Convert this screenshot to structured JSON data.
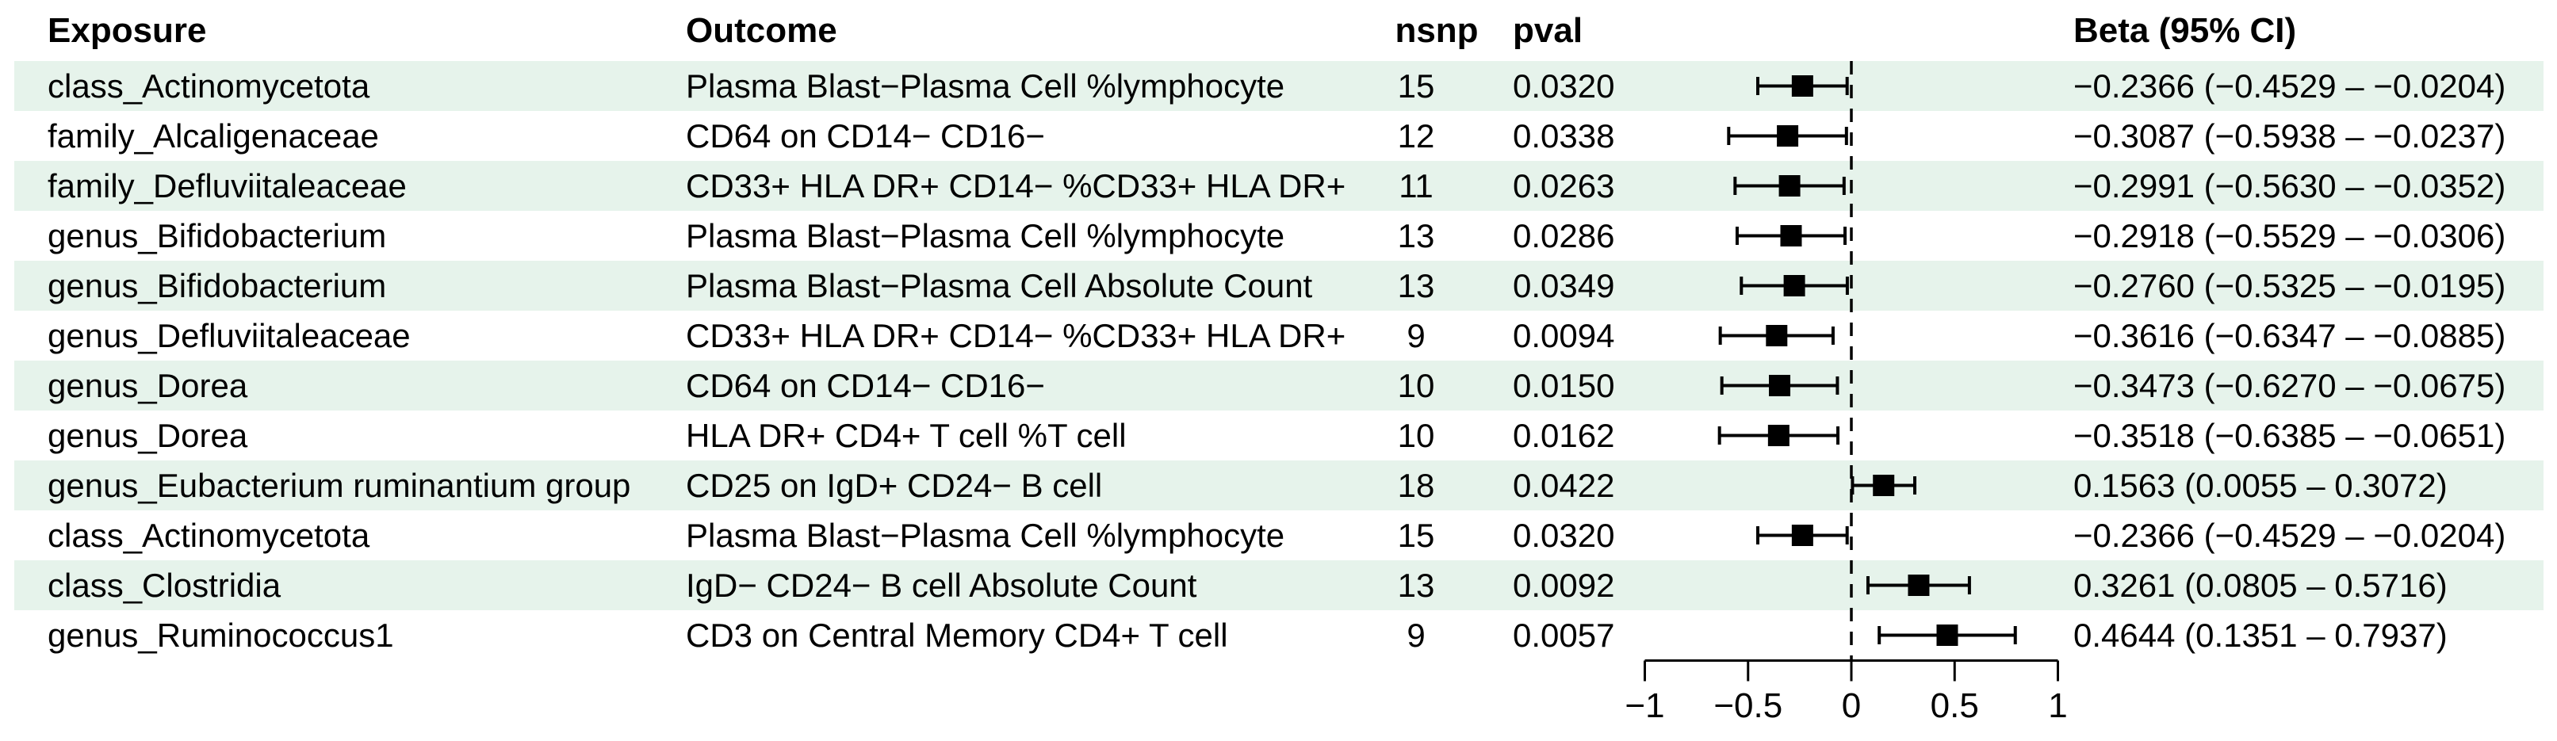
{
  "table": {
    "headers": {
      "exposure": "Exposure",
      "outcome": "Outcome",
      "nsnp": "nsnp",
      "pval": "pval",
      "beta": "Beta (95% CI)"
    },
    "rows": [
      {
        "exposure": "class_Actinomycetota",
        "outcome": "Plasma Blast−Plasma Cell %lymphocyte",
        "nsnp": "15",
        "pval": "0.0320",
        "beta_ci": "−0.2366 (−0.4529 – −0.0204)"
      },
      {
        "exposure": "family_Alcaligenaceae",
        "outcome": "CD64 on CD14− CD16−",
        "nsnp": "12",
        "pval": "0.0338",
        "beta_ci": "−0.3087 (−0.5938 – −0.0237)"
      },
      {
        "exposure": "family_Defluviitaleaceae",
        "outcome": "CD33+ HLA DR+ CD14− %CD33+ HLA DR+",
        "nsnp": "11",
        "pval": "0.0263",
        "beta_ci": "−0.2991 (−0.5630 – −0.0352)"
      },
      {
        "exposure": "genus_Bifidobacterium",
        "outcome": "Plasma Blast−Plasma Cell %lymphocyte",
        "nsnp": "13",
        "pval": "0.0286",
        "beta_ci": "−0.2918 (−0.5529 – −0.0306)"
      },
      {
        "exposure": "genus_Bifidobacterium",
        "outcome": "Plasma Blast−Plasma Cell Absolute Count",
        "nsnp": "13",
        "pval": "0.0349",
        "beta_ci": "−0.2760 (−0.5325 – −0.0195)"
      },
      {
        "exposure": "genus_Defluviitaleaceae",
        "outcome": "CD33+ HLA DR+ CD14− %CD33+ HLA DR+",
        "nsnp": "9",
        "pval": "0.0094",
        "beta_ci": "−0.3616 (−0.6347 – −0.0885)"
      },
      {
        "exposure": "genus_Dorea",
        "outcome": "CD64 on CD14− CD16−",
        "nsnp": "10",
        "pval": "0.0150",
        "beta_ci": "−0.3473 (−0.6270 – −0.0675)"
      },
      {
        "exposure": "genus_Dorea",
        "outcome": "HLA DR+ CD4+ T cell %T cell",
        "nsnp": "10",
        "pval": "0.0162",
        "beta_ci": "−0.3518 (−0.6385 – −0.0651)"
      },
      {
        "exposure": "genus_Eubacterium ruminantium group",
        "outcome": "CD25 on IgD+ CD24− B cell",
        "nsnp": "18",
        "pval": "0.0422",
        "beta_ci": "0.1563 (0.0055 – 0.3072)"
      },
      {
        "exposure": "class_Actinomycetota",
        "outcome": "Plasma Blast−Plasma Cell %lymphocyte",
        "nsnp": "15",
        "pval": "0.0320",
        "beta_ci": "−0.2366 (−0.4529 – −0.0204)"
      },
      {
        "exposure": "class_Clostridia",
        "outcome": "IgD− CD24− B cell Absolute Count",
        "nsnp": "13",
        "pval": "0.0092",
        "beta_ci": "0.3261 (0.0805 – 0.5716)"
      },
      {
        "exposure": "genus_Ruminococcus1",
        "outcome": "CD3 on Central Memory CD4+ T cell",
        "nsnp": "9",
        "pval": "0.0057",
        "beta_ci": "0.4644 (0.1351 – 0.7937)"
      }
    ]
  },
  "chart_data": {
    "type": "scatter",
    "subtype": "forest-plot",
    "title": "",
    "xlabel": "",
    "ylabel": "",
    "xlim": [
      -1,
      1
    ],
    "x_ticks": [
      -1,
      -0.5,
      0,
      0.5,
      1
    ],
    "x_tick_labels": [
      "−1",
      "−0.5",
      "0",
      "0.5",
      "1"
    ],
    "reference_line_x": 0,
    "reference_line_style": "dashed",
    "grid": false,
    "legend": "none",
    "marker": "square",
    "points": [
      {
        "beta": -0.2366,
        "ci_low": -0.4529,
        "ci_high": -0.0204
      },
      {
        "beta": -0.3087,
        "ci_low": -0.5938,
        "ci_high": -0.0237
      },
      {
        "beta": -0.2991,
        "ci_low": -0.563,
        "ci_high": -0.0352
      },
      {
        "beta": -0.2918,
        "ci_low": -0.5529,
        "ci_high": -0.0306
      },
      {
        "beta": -0.276,
        "ci_low": -0.5325,
        "ci_high": -0.0195
      },
      {
        "beta": -0.3616,
        "ci_low": -0.6347,
        "ci_high": -0.0885
      },
      {
        "beta": -0.3473,
        "ci_low": -0.627,
        "ci_high": -0.0675
      },
      {
        "beta": -0.3518,
        "ci_low": -0.6385,
        "ci_high": -0.0651
      },
      {
        "beta": 0.1563,
        "ci_low": 0.0055,
        "ci_high": 0.3072
      },
      {
        "beta": -0.2366,
        "ci_low": -0.4529,
        "ci_high": -0.0204
      },
      {
        "beta": 0.3261,
        "ci_low": 0.0805,
        "ci_high": 0.5716
      },
      {
        "beta": 0.4644,
        "ci_low": 0.1351,
        "ci_high": 0.7937
      }
    ],
    "colors": {
      "marker": "#000000",
      "line": "#000000",
      "text": "#000000",
      "band": "#e6f3eb",
      "background": "#ffffff"
    }
  }
}
